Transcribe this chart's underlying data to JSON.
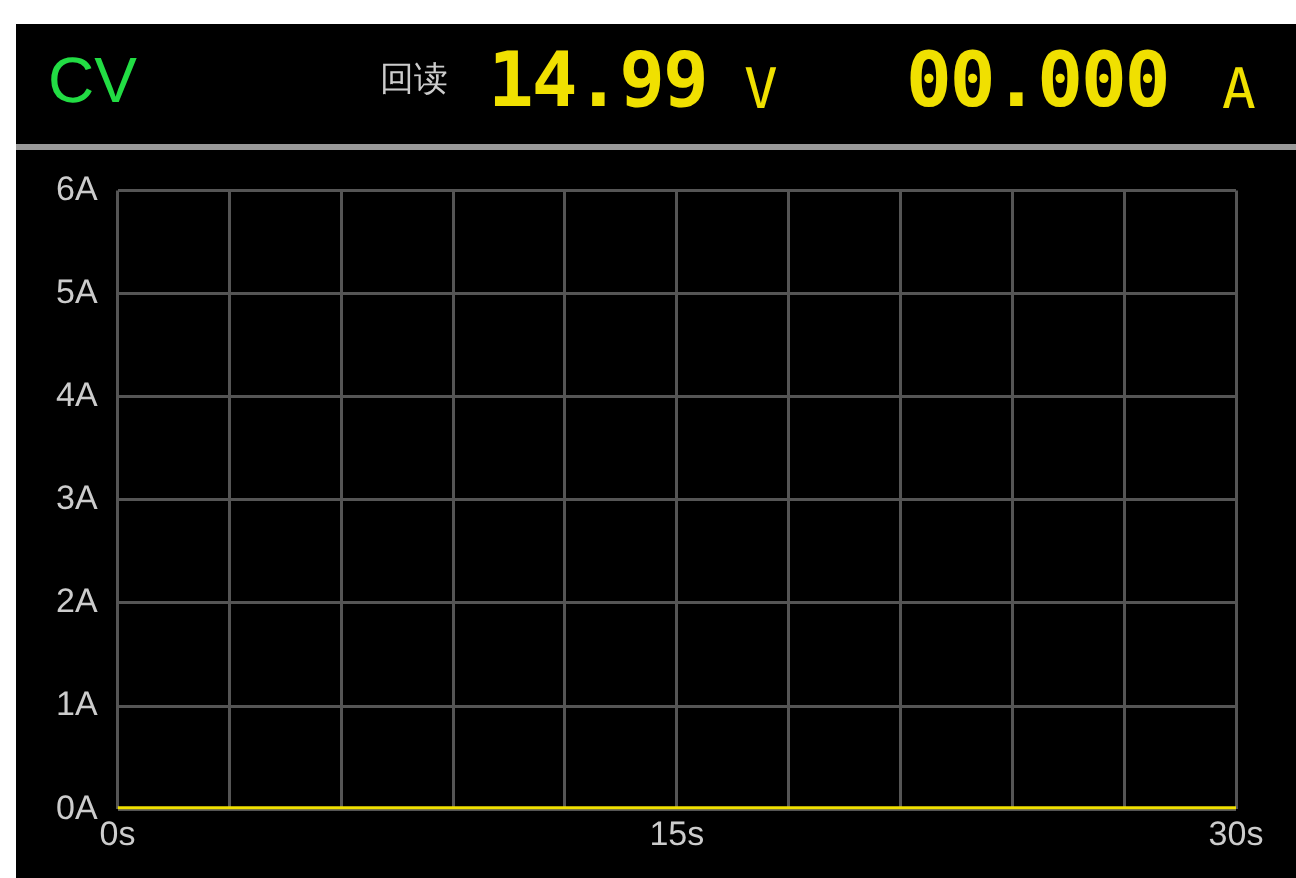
{
  "chart_data": {
    "type": "line",
    "annotations": [
      "CV",
      "回读",
      "14.99",
      "V",
      "00.000",
      "A"
    ],
    "x": [
      0,
      30
    ],
    "series": [
      {
        "color": "#f0e000",
        "values": [
          0,
          0
        ]
      }
    ],
    "xlim": [
      0,
      30
    ],
    "xticks": [
      {
        "value": 0,
        "label": "0s"
      },
      {
        "value": 3,
        "label": null
      },
      {
        "value": 6,
        "label": null
      },
      {
        "value": 9,
        "label": null
      },
      {
        "value": 12,
        "label": null
      },
      {
        "value": 15,
        "label": "15s"
      },
      {
        "value": 18,
        "label": null
      },
      {
        "value": 21,
        "label": null
      },
      {
        "value": 24,
        "label": null
      },
      {
        "value": 27,
        "label": null
      },
      {
        "value": 30,
        "label": "30s"
      }
    ],
    "ylim": [
      0,
      6
    ],
    "yticks": [
      {
        "value": 0,
        "label": "0A"
      },
      {
        "value": 1,
        "label": "1A"
      },
      {
        "value": 2,
        "label": "2A"
      },
      {
        "value": 3,
        "label": "3A"
      },
      {
        "value": 4,
        "label": "4A"
      },
      {
        "value": 5,
        "label": "5A"
      },
      {
        "value": 6,
        "label": "6A"
      }
    ],
    "grid": true,
    "marker": "none",
    "line_style": "solid",
    "legend": false
  }
}
